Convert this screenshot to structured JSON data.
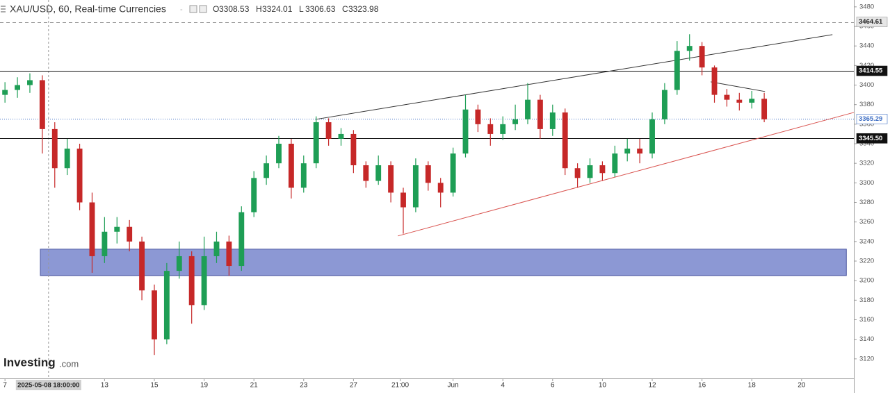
{
  "chart_data": {
    "type": "candlestick",
    "title": "XAU/USD, 60, Real-time Currencies",
    "ohlc_header": [
      {
        "label": "O",
        "value": 3308.53
      },
      {
        "label": "H",
        "value": 3324.01
      },
      {
        "label": "L",
        "value": 3306.63
      },
      {
        "label": "C",
        "value": 3323.98
      }
    ],
    "watermark": "Investing",
    "watermark_suffix": ".com",
    "x": [
      0,
      0.5,
      1,
      1.5,
      2,
      2.5,
      3,
      3.5,
      4,
      4.5,
      5,
      5.5,
      6,
      6.5,
      7,
      7.5,
      8,
      8.5,
      9,
      9.5,
      10,
      10.5,
      11,
      11.5,
      12,
      12.5,
      13,
      13.5,
      14,
      14.5,
      15,
      15.5,
      16,
      16.5,
      17,
      17.5,
      18,
      18.5,
      19,
      19.5,
      20,
      20.5,
      21,
      21.5,
      22,
      22.5,
      23,
      23.5,
      24,
      24.5,
      25,
      25.5,
      26,
      26.5,
      27,
      27.5,
      28,
      28.5,
      29,
      29.5,
      30,
      30.5
    ],
    "open": [
      3390,
      3395,
      3400,
      3405,
      3355,
      3315,
      3335,
      3280,
      3225,
      3250,
      3255,
      3240,
      3190,
      3140,
      3210,
      3225,
      3175,
      3225,
      3240,
      3215,
      3270,
      3305,
      3320,
      3340,
      3295,
      3320,
      3362,
      3345,
      3350,
      3318,
      3302,
      3318,
      3290,
      3275,
      3318,
      3300,
      3290,
      3330,
      3375,
      3360,
      3350,
      3360,
      3365,
      3385,
      3355,
      3372,
      3315,
      3305,
      3318,
      3310,
      3330,
      3335,
      3330,
      3365,
      3395,
      3435,
      3440,
      3418,
      3390,
      3385,
      3382,
      3386
    ],
    "high": [
      3403,
      3408,
      3412,
      3410,
      3362,
      3345,
      3340,
      3290,
      3265,
      3265,
      3262,
      3245,
      3196,
      3218,
      3240,
      3230,
      3245,
      3250,
      3246,
      3276,
      3312,
      3328,
      3348,
      3345,
      3328,
      3368,
      3366,
      3356,
      3354,
      3322,
      3328,
      3322,
      3295,
      3325,
      3322,
      3305,
      3336,
      3390,
      3380,
      3366,
      3368,
      3380,
      3402,
      3390,
      3380,
      3376,
      3320,
      3325,
      3322,
      3338,
      3345,
      3345,
      3372,
      3402,
      3445,
      3452,
      3444,
      3420,
      3396,
      3392,
      3394,
      3392
    ],
    "low": [
      3382,
      3387,
      3392,
      3330,
      3295,
      3308,
      3272,
      3208,
      3218,
      3238,
      3230,
      3180,
      3124,
      3135,
      3202,
      3156,
      3170,
      3218,
      3205,
      3210,
      3265,
      3298,
      3315,
      3284,
      3290,
      3315,
      3338,
      3338,
      3310,
      3295,
      3298,
      3280,
      3248,
      3270,
      3292,
      3275,
      3286,
      3326,
      3352,
      3338,
      3344,
      3354,
      3360,
      3345,
      3348,
      3308,
      3295,
      3300,
      3302,
      3306,
      3322,
      3320,
      3325,
      3360,
      3390,
      3425,
      3410,
      3382,
      3378,
      3374,
      3376,
      3362
    ],
    "close": [
      3395,
      3400,
      3405,
      3355,
      3315,
      3335,
      3280,
      3225,
      3250,
      3255,
      3240,
      3190,
      3140,
      3210,
      3225,
      3175,
      3225,
      3240,
      3215,
      3270,
      3305,
      3320,
      3340,
      3295,
      3320,
      3362,
      3345,
      3350,
      3318,
      3302,
      3318,
      3290,
      3275,
      3318,
      3300,
      3290,
      3330,
      3375,
      3360,
      3350,
      3360,
      3365,
      3385,
      3355,
      3372,
      3315,
      3305,
      3318,
      3310,
      3330,
      3335,
      3330,
      3365,
      3395,
      3435,
      3440,
      3418,
      3390,
      3385,
      3382,
      3386,
      3365
    ],
    "up_color": "#1e9e55",
    "down_color": "#c62828",
    "xlim": [
      -0.2,
      34.1
    ],
    "ylim": [
      3100,
      3487
    ],
    "yticks": [
      3120,
      3140,
      3160,
      3180,
      3200,
      3220,
      3240,
      3260,
      3280,
      3300,
      3320,
      3340,
      3360,
      3380,
      3400,
      3420,
      3440,
      3460,
      3480
    ],
    "xticks": [
      {
        "value": 0,
        "label": "7"
      },
      {
        "value": 4,
        "label": "13"
      },
      {
        "value": 6,
        "label": "15"
      },
      {
        "value": 8,
        "label": "19"
      },
      {
        "value": 10,
        "label": "21"
      },
      {
        "value": 12,
        "label": "23"
      },
      {
        "value": 14,
        "label": "27"
      },
      {
        "value": 15.875,
        "label": "21:00"
      },
      {
        "value": 18,
        "label": "Jun"
      },
      {
        "value": 20,
        "label": "4"
      },
      {
        "value": 22,
        "label": "6"
      },
      {
        "value": 24,
        "label": "10"
      },
      {
        "value": 26,
        "label": "12"
      },
      {
        "value": 28,
        "label": "16"
      },
      {
        "value": 30,
        "label": "18"
      },
      {
        "value": 32,
        "label": "20"
      }
    ],
    "crosshair_x": {
      "value": 1.75,
      "label": "2025-05-08 18:00:00"
    },
    "levels": [
      {
        "value": 3464.61,
        "style": "dashed",
        "color": "#999999",
        "box": "#e6e6e6",
        "text_color": "#222222"
      },
      {
        "value": 3414.55,
        "style": "solid",
        "color": "#111111",
        "box": "#111111",
        "text_color": "#ffffff"
      },
      {
        "value": 3365.29,
        "style": "dotted",
        "color": "#3f6fc4",
        "box": "#ffffff",
        "text_color": "#3f6fc4"
      },
      {
        "value": {
          "value": 3345.5,
          "label": "3345.50"
        },
        "style": "solid",
        "color": "#111111",
        "box": "#111111",
        "text_color": "#ffffff"
      }
    ],
    "trendlines": [
      {
        "x": [
          12.5,
          33.24
        ],
        "y": [
          3365,
          3451.6
        ],
        "color": "#333333"
      },
      {
        "x": [
          15.78,
          34.1
        ],
        "y": [
          3245.7,
          3372
        ],
        "color": "#d9534f"
      },
      {
        "x": [
          28.35,
          30.53
        ],
        "y": [
          3403.3,
          3393.4
        ],
        "color": "#333333"
      }
    ],
    "zone": {
      "x": [
        1.42,
        33.8
      ],
      "y": [
        3205.2,
        3232.2
      ],
      "color": "#8c98d4"
    }
  }
}
